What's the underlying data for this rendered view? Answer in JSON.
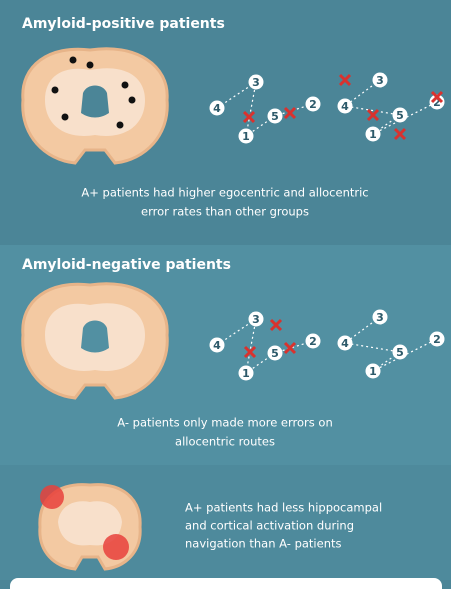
{
  "sections": [
    {
      "title": "Amyloid-positive patients",
      "caption_lines": [
        "A+ patients had higher egocentric and allocentric",
        "error rates than other groups"
      ],
      "egocentric_route": {
        "nodes": [
          "4",
          "3",
          "1",
          "5",
          "2"
        ]
      },
      "allocentric_route": {
        "nodes": [
          "3",
          "4",
          "5",
          "1",
          "2"
        ]
      }
    },
    {
      "title": "Amyloid-negative patients",
      "caption_lines": [
        "A- patients only made more errors on",
        "allocentric routes"
      ],
      "egocentric_route": {
        "nodes": [
          "4",
          "3",
          "1",
          "5",
          "2"
        ]
      },
      "allocentric_route": {
        "nodes": [
          "3",
          "4",
          "5",
          "1",
          "2"
        ]
      }
    },
    {
      "text_lines": [
        "A+ patients had less hippocampal",
        "and cortical activation during",
        "navigation than A- patients"
      ]
    }
  ]
}
